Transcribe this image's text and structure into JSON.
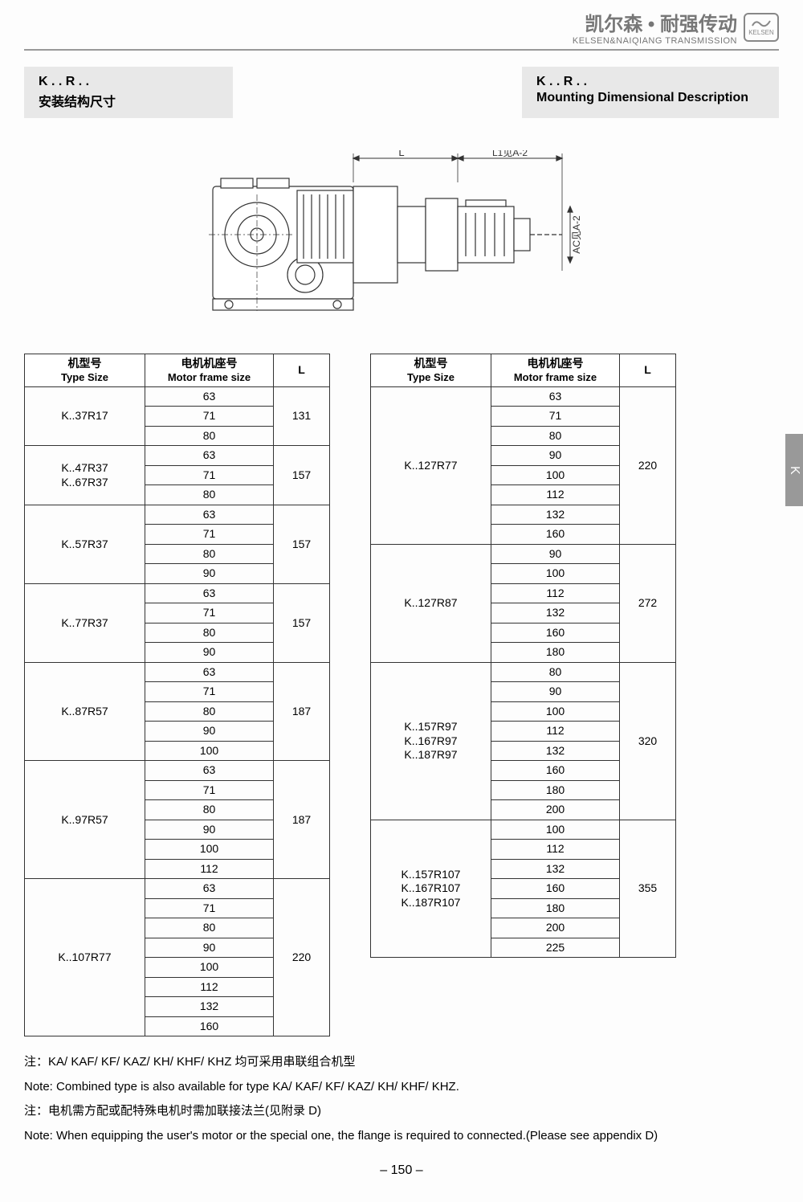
{
  "brand": {
    "cn": "凯尔森 • 耐强传动",
    "en": "KELSEN&NAIQIANG TRANSMISSION",
    "logo_label": "KELSEN"
  },
  "title_left": {
    "line1": "K . . R . .",
    "line2": "安装结构尺寸"
  },
  "title_right": {
    "line1": "K . . R . .",
    "line2": "Mounting Dimensional Description"
  },
  "diagram": {
    "label_L": "L",
    "label_L1": "L1见A-2",
    "label_AC": "AC见A-2",
    "colors": {
      "stroke": "#333333",
      "fill": "#ffffff"
    }
  },
  "side_tab": "K",
  "table_headers": {
    "type_cn": "机型号",
    "type_en": "Type Size",
    "motor_cn": "电机机座号",
    "motor_en": "Motor frame size",
    "l": "L"
  },
  "left_table": [
    {
      "type": "K..37R17",
      "motors": [
        "63",
        "71",
        "80"
      ],
      "l": "131"
    },
    {
      "type": "K..47R37\nK..67R37",
      "motors": [
        "63",
        "71",
        "80"
      ],
      "l": "157"
    },
    {
      "type": "K..57R37",
      "motors": [
        "63",
        "71",
        "80",
        "90"
      ],
      "l": "157"
    },
    {
      "type": "K..77R37",
      "motors": [
        "63",
        "71",
        "80",
        "90"
      ],
      "l": "157"
    },
    {
      "type": "K..87R57",
      "motors": [
        "63",
        "71",
        "80",
        "90",
        "100"
      ],
      "l": "187"
    },
    {
      "type": "K..97R57",
      "motors": [
        "63",
        "71",
        "80",
        "90",
        "100",
        "112"
      ],
      "l": "187"
    },
    {
      "type": "K..107R77",
      "motors": [
        "63",
        "71",
        "80",
        "90",
        "100",
        "112",
        "132",
        "160"
      ],
      "l": "220"
    }
  ],
  "right_table": [
    {
      "type": "K..127R77",
      "motors": [
        "63",
        "71",
        "80",
        "90",
        "100",
        "112",
        "132",
        "160"
      ],
      "l": "220"
    },
    {
      "type": "K..127R87",
      "motors": [
        "90",
        "100",
        "112",
        "132",
        "160",
        "180"
      ],
      "l": "272"
    },
    {
      "type": "K..157R97\nK..167R97\nK..187R97",
      "motors": [
        "80",
        "90",
        "100",
        "112",
        "132",
        "160",
        "180",
        "200"
      ],
      "l": "320"
    },
    {
      "type": "K..157R107\nK..167R107\nK..187R107",
      "motors": [
        "100",
        "112",
        "132",
        "160",
        "180",
        "200",
        "225"
      ],
      "l": "355"
    }
  ],
  "notes": {
    "n1": "注：KA/ KAF/ KF/ KAZ/ KH/ KHF/ KHZ 均可采用串联组合机型",
    "n2": "Note: Combined type is also available for type   KA/ KAF/ KF/ KAZ/ KH/ KHF/ KHZ.",
    "n3": "注：电机需方配或配特殊电机时需加联接法兰(见附录 D)",
    "n4": "Note: When equipping the user's motor or the special one, the flange is required to connected.(Please see appendix D)"
  },
  "page_number": "– 150 –"
}
